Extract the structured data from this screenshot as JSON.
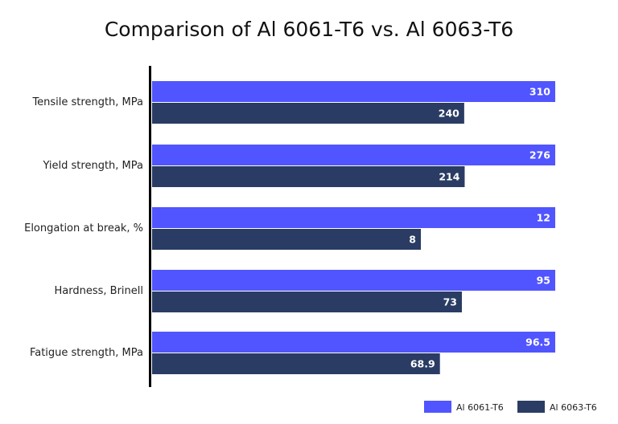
{
  "chart_data": {
    "type": "bar",
    "orientation": "horizontal",
    "title": "Comparison of Al 6061-T6 vs. Al 6063-T6",
    "categories": [
      "Tensile strength, MPa",
      "Yield strength, MPa",
      "Elongation at break, %",
      "Hardness, Brinell",
      "Fatigue strength, MPa"
    ],
    "series": [
      {
        "name": "Al 6061-T6",
        "values": [
          310,
          276,
          12,
          95,
          96.5
        ],
        "labels": [
          "310",
          "276",
          "12",
          "95",
          "96.5"
        ],
        "color": "#5055ff"
      },
      {
        "name": "Al 6063-T6",
        "values": [
          240,
          214,
          8,
          73,
          68.9
        ],
        "labels": [
          "240",
          "214",
          "8",
          "73",
          "68.9"
        ],
        "color": "#2a3c63"
      }
    ],
    "scaling": "each category scaled to its own maximum",
    "grid": false,
    "legend": "bottom-right",
    "data_labels": true
  }
}
